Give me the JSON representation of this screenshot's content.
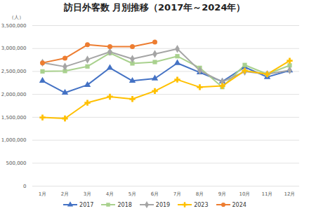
{
  "chart_data": {
    "type": "line",
    "title": "訪日外客数 月別推移（2017年～2024年）",
    "ylabel": "（人）",
    "categories": [
      "1月",
      "2月",
      "3月",
      "4月",
      "5月",
      "6月",
      "7月",
      "8月",
      "9月",
      "10月",
      "11月",
      "12月"
    ],
    "series": [
      {
        "name": "2017",
        "color": "#4472c4",
        "marker": "triangle",
        "values": [
          2296000,
          2036000,
          2206000,
          2578000,
          2295000,
          2346000,
          2682000,
          2478000,
          2281000,
          2595000,
          2378000,
          2521000
        ]
      },
      {
        "name": "2018",
        "color": "#a9d18e",
        "marker": "square",
        "values": [
          2501000,
          2509000,
          2609000,
          2901000,
          2675000,
          2705000,
          2832000,
          2578000,
          2160000,
          2641000,
          2441000,
          2632000
        ]
      },
      {
        "name": "2019",
        "color": "#a5a5a5",
        "marker": "diamond",
        "values": [
          2689000,
          2604000,
          2760000,
          2927000,
          2773000,
          2880000,
          2991000,
          2520000,
          2273000,
          2497000,
          2441000,
          2526000
        ]
      },
      {
        "name": "2023",
        "color": "#ffc000",
        "marker": "cross",
        "values": [
          1497000,
          1475000,
          1818000,
          1949000,
          1899000,
          2073000,
          2321000,
          2157000,
          2184000,
          2517000,
          2440000,
          2734000
        ]
      },
      {
        "name": "2024",
        "color": "#ed7d31",
        "marker": "circle",
        "values": [
          2688000,
          2788000,
          3082000,
          3043000,
          3040000,
          3140000,
          null,
          null,
          null,
          null,
          null,
          null
        ]
      }
    ],
    "ylim": [
      0,
      3500000
    ],
    "yticks": [
      0,
      {
        "value": 500000,
        "label": "500,000"
      },
      {
        "value": 1000000,
        "label": "1,000,000"
      },
      {
        "value": 1500000,
        "label": "1,500,000"
      },
      {
        "value": 2000000,
        "label": "2,000,000"
      },
      {
        "value": 2500000,
        "label": "2,500,000"
      },
      {
        "value": 3000000,
        "label": "3,000,000"
      },
      {
        "value": 3500000,
        "label": "3,500,000"
      }
    ],
    "grid": true,
    "legend": "bottom"
  }
}
